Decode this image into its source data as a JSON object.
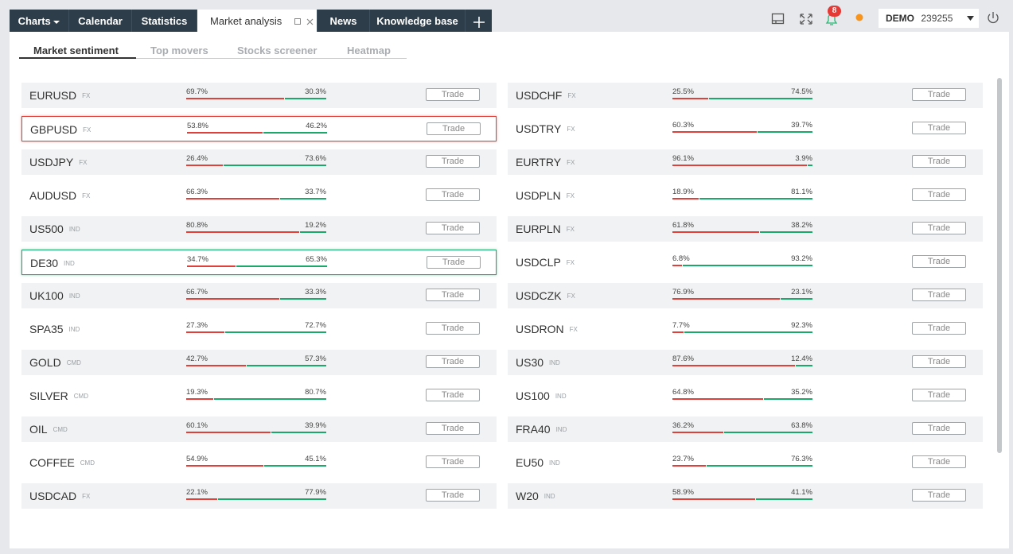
{
  "tabs": [
    "Charts",
    "Calendar",
    "Statistics",
    "Market analysis",
    "News",
    "Knowledge base"
  ],
  "notifications": "8",
  "account": {
    "mode": "DEMO",
    "number": "239255"
  },
  "subtabs": [
    "Market sentiment",
    "Top movers",
    "Stocks screener",
    "Heatmap"
  ],
  "market_sentiment": {
    "left": [
      {
        "symbol": "EURUSD",
        "kind": "FX",
        "sell": {
          "value": 69.7,
          "label": "69.7%"
        },
        "buy": {
          "value": 30.3,
          "label": "30.3%"
        },
        "button": "Trade"
      },
      {
        "symbol": "GBPUSD",
        "kind": "FX",
        "sell": {
          "value": 53.8,
          "label": "53.8%"
        },
        "buy": {
          "value": 46.2,
          "label": "46.2%"
        },
        "button": "Trade"
      },
      {
        "symbol": "USDJPY",
        "kind": "FX",
        "sell": {
          "value": 26.4,
          "label": "26.4%"
        },
        "buy": {
          "value": 73.6,
          "label": "73.6%"
        },
        "button": "Trade"
      },
      {
        "symbol": "AUDUSD",
        "kind": "FX",
        "sell": {
          "value": 66.3,
          "label": "66.3%"
        },
        "buy": {
          "value": 33.7,
          "label": "33.7%"
        },
        "button": "Trade"
      },
      {
        "symbol": "US500",
        "kind": "IND",
        "sell": {
          "value": 80.8,
          "label": "80.8%"
        },
        "buy": {
          "value": 19.2,
          "label": "19.2%"
        },
        "button": "Trade"
      },
      {
        "symbol": "DE30",
        "kind": "IND",
        "sell": {
          "value": 34.7,
          "label": "34.7%"
        },
        "buy": {
          "value": 65.3,
          "label": "65.3%"
        },
        "button": "Trade"
      },
      {
        "symbol": "UK100",
        "kind": "IND",
        "sell": {
          "value": 66.7,
          "label": "66.7%"
        },
        "buy": {
          "value": 33.3,
          "label": "33.3%"
        },
        "button": "Trade"
      },
      {
        "symbol": "SPA35",
        "kind": "IND",
        "sell": {
          "value": 27.3,
          "label": "27.3%"
        },
        "buy": {
          "value": 72.7,
          "label": "72.7%"
        },
        "button": "Trade"
      },
      {
        "symbol": "GOLD",
        "kind": "CMD",
        "sell": {
          "value": 42.7,
          "label": "42.7%"
        },
        "buy": {
          "value": 57.3,
          "label": "57.3%"
        },
        "button": "Trade"
      },
      {
        "symbol": "SILVER",
        "kind": "CMD",
        "sell": {
          "value": 19.3,
          "label": "19.3%"
        },
        "buy": {
          "value": 80.7,
          "label": "80.7%"
        },
        "button": "Trade"
      },
      {
        "symbol": "OIL",
        "kind": "CMD",
        "sell": {
          "value": 60.1,
          "label": "60.1%"
        },
        "buy": {
          "value": 39.9,
          "label": "39.9%"
        },
        "button": "Trade"
      },
      {
        "symbol": "COFFEE",
        "kind": "CMD",
        "sell": {
          "value": 54.9,
          "label": "54.9%"
        },
        "buy": {
          "value": 45.1,
          "label": "45.1%"
        },
        "button": "Trade"
      },
      {
        "symbol": "USDCAD",
        "kind": "FX",
        "sell": {
          "value": 22.1,
          "label": "22.1%"
        },
        "buy": {
          "value": 77.9,
          "label": "77.9%"
        },
        "button": "Trade"
      }
    ],
    "right": [
      {
        "symbol": "USDCHF",
        "kind": "FX",
        "sell": {
          "value": 25.5,
          "label": "25.5%"
        },
        "buy": {
          "value": 74.5,
          "label": "74.5%"
        },
        "button": "Trade"
      },
      {
        "symbol": "USDTRY",
        "kind": "FX",
        "sell": {
          "value": 60.3,
          "label": "60.3%"
        },
        "buy": {
          "value": 39.7,
          "label": "39.7%"
        },
        "button": "Trade"
      },
      {
        "symbol": "EURTRY",
        "kind": "FX",
        "sell": {
          "value": 96.1,
          "label": "96.1%"
        },
        "buy": {
          "value": 3.9,
          "label": "3.9%"
        },
        "button": "Trade"
      },
      {
        "symbol": "USDPLN",
        "kind": "FX",
        "sell": {
          "value": 18.9,
          "label": "18.9%"
        },
        "buy": {
          "value": 81.1,
          "label": "81.1%"
        },
        "button": "Trade"
      },
      {
        "symbol": "EURPLN",
        "kind": "FX",
        "sell": {
          "value": 61.8,
          "label": "61.8%"
        },
        "buy": {
          "value": 38.2,
          "label": "38.2%"
        },
        "button": "Trade"
      },
      {
        "symbol": "USDCLP",
        "kind": "FX",
        "sell": {
          "value": 6.8,
          "label": "6.8%"
        },
        "buy": {
          "value": 93.2,
          "label": "93.2%"
        },
        "button": "Trade"
      },
      {
        "symbol": "USDCZK",
        "kind": "FX",
        "sell": {
          "value": 76.9,
          "label": "76.9%"
        },
        "buy": {
          "value": 23.1,
          "label": "23.1%"
        },
        "button": "Trade"
      },
      {
        "symbol": "USDRON",
        "kind": "FX",
        "sell": {
          "value": 7.7,
          "label": "7.7%"
        },
        "buy": {
          "value": 92.3,
          "label": "92.3%"
        },
        "button": "Trade"
      },
      {
        "symbol": "US30",
        "kind": "IND",
        "sell": {
          "value": 87.6,
          "label": "87.6%"
        },
        "buy": {
          "value": 12.4,
          "label": "12.4%"
        },
        "button": "Trade"
      },
      {
        "symbol": "US100",
        "kind": "IND",
        "sell": {
          "value": 64.8,
          "label": "64.8%"
        },
        "buy": {
          "value": 35.2,
          "label": "35.2%"
        },
        "button": "Trade"
      },
      {
        "symbol": "FRA40",
        "kind": "IND",
        "sell": {
          "value": 36.2,
          "label": "36.2%"
        },
        "buy": {
          "value": 63.8,
          "label": "63.8%"
        },
        "button": "Trade"
      },
      {
        "symbol": "EU50",
        "kind": "IND",
        "sell": {
          "value": 23.7,
          "label": "23.7%"
        },
        "buy": {
          "value": 76.3,
          "label": "76.3%"
        },
        "button": "Trade"
      },
      {
        "symbol": "W20",
        "kind": "IND",
        "sell": {
          "value": 58.9,
          "label": "58.9%"
        },
        "buy": {
          "value": 41.1,
          "label": "41.1%"
        },
        "button": "Trade"
      }
    ]
  }
}
